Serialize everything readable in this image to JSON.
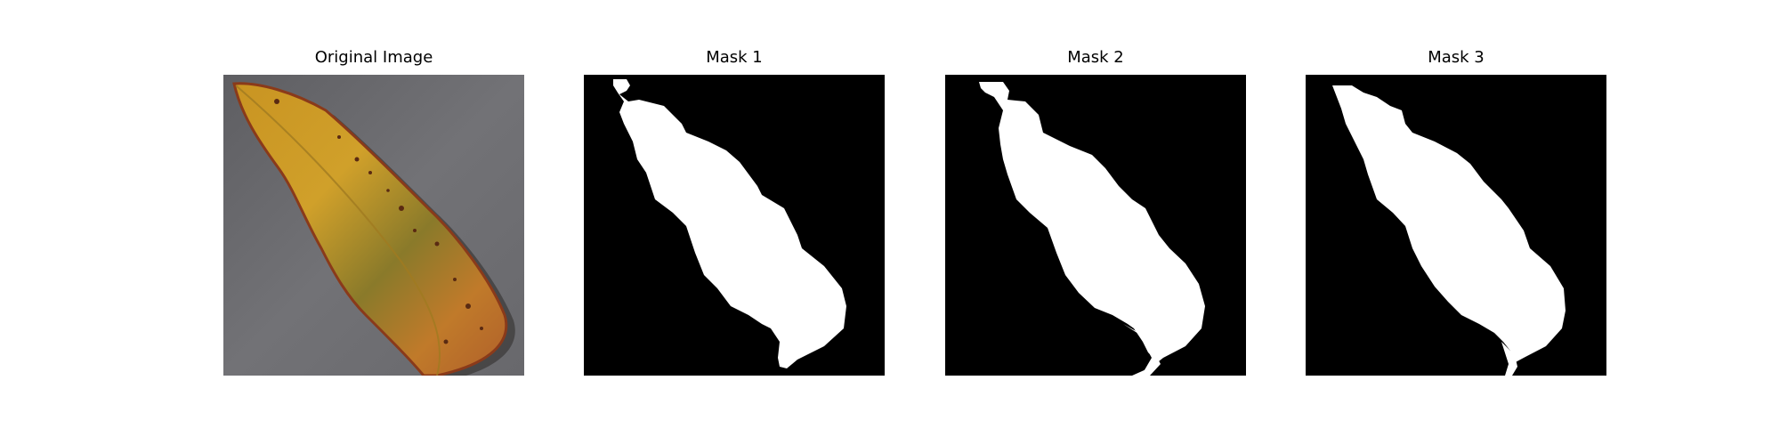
{
  "figure": {
    "panels": [
      {
        "title": "Original Image",
        "kind": "photo"
      },
      {
        "title": "Mask 1",
        "kind": "mask"
      },
      {
        "title": "Mask 2",
        "kind": "mask"
      },
      {
        "title": "Mask 3",
        "kind": "mask"
      }
    ]
  },
  "colors": {
    "background": "#ffffff",
    "mask_background": "#000000",
    "mask_foreground": "#ffffff",
    "surface_gray": "#6b6b6f",
    "leaf_yellow": "#c99a1e",
    "leaf_orange": "#c9752a",
    "leaf_green": "#6e6b2a",
    "leaf_edge": "#8a3a1a"
  }
}
